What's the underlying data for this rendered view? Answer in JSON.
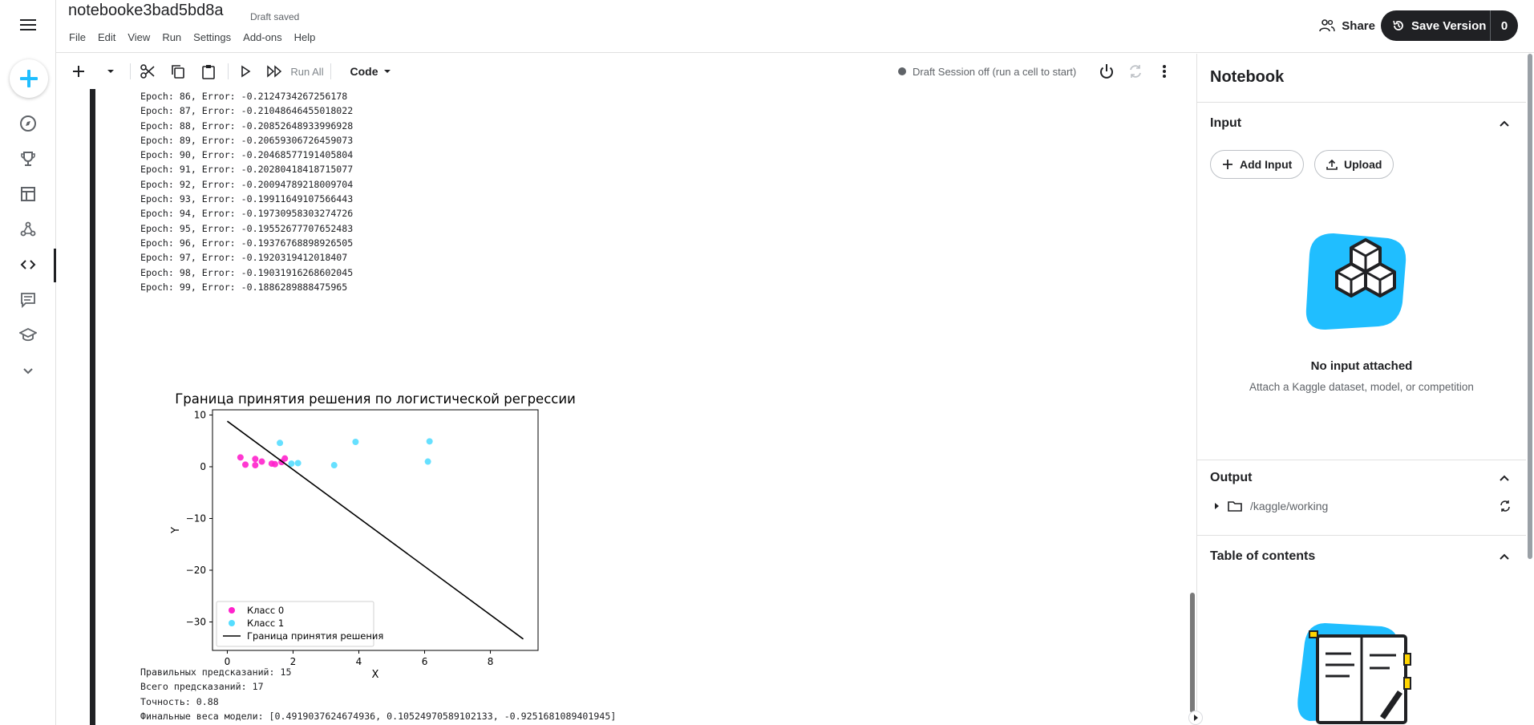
{
  "header": {
    "notebook_title": "notebooke3bad5bd8a",
    "draft_status": "Draft saved",
    "menu": [
      "File",
      "Edit",
      "View",
      "Run",
      "Settings",
      "Add-ons",
      "Help"
    ],
    "share_label": "Share",
    "save_version_label": "Save Version",
    "save_version_count": "0"
  },
  "toolbar": {
    "run_all_label": "Run All",
    "cell_type": "Code",
    "session_status": "Draft Session off (run a cell to start)"
  },
  "cell_output": {
    "log_lines": [
      "Epoch: 86, Error: -0.2124734267256178",
      "Epoch: 87, Error: -0.21048646455018022",
      "Epoch: 88, Error: -0.20852648933996928",
      "Epoch: 89, Error: -0.20659306726459073",
      "Epoch: 90, Error: -0.20468577191405804",
      "Epoch: 91, Error: -0.20280418418715077",
      "Epoch: 92, Error: -0.20094789218009704",
      "Epoch: 93, Error: -0.19911649107566443",
      "Epoch: 94, Error: -0.19730958303274726",
      "Epoch: 95, Error: -0.19552677707652483",
      "Epoch: 96, Error: -0.19376768898926505",
      "Epoch: 97, Error: -0.1920319412018407",
      "Epoch: 98, Error: -0.19031916268602045",
      "Epoch: 99, Error: -0.1886289888475965"
    ],
    "result_lines": [
      "Правильных предсказаний: 15",
      "Всего предсказаний: 17",
      "Точность: 0.88",
      "Финальные веса модели: [0.4919037624674936, 0.10524970589102133, -0.9251681089401945]"
    ]
  },
  "chart_data": {
    "type": "scatter",
    "title": "Граница принятия решения по логистической регрессии",
    "xlabel": "X",
    "ylabel": "Y",
    "xlim": [
      -0.45,
      9.45
    ],
    "ylim": [
      -35.5,
      11
    ],
    "xticks": [
      0,
      2,
      4,
      6,
      8
    ],
    "yticks": [
      10,
      0,
      -10,
      -20,
      -30
    ],
    "grid": false,
    "legend_position": "lower-left",
    "series": [
      {
        "name": "Класс 0",
        "kind": "points",
        "color": "#ff22cc",
        "points": [
          [
            0.4,
            1.8
          ],
          [
            0.55,
            0.4
          ],
          [
            0.85,
            1.5
          ],
          [
            0.85,
            0.3
          ],
          [
            1.05,
            1.0
          ],
          [
            1.35,
            0.6
          ],
          [
            1.45,
            0.5
          ],
          [
            1.65,
            0.9
          ],
          [
            1.75,
            1.6
          ]
        ]
      },
      {
        "name": "Класс 1",
        "kind": "points",
        "color": "#55ddff",
        "points": [
          [
            1.6,
            4.6
          ],
          [
            1.95,
            0.6
          ],
          [
            2.15,
            0.7
          ],
          [
            3.25,
            0.3
          ],
          [
            3.9,
            4.8
          ],
          [
            6.1,
            1.0
          ],
          [
            6.15,
            4.9
          ]
        ]
      },
      {
        "name": "Граница принятия решения",
        "kind": "line",
        "color": "#000000",
        "points": [
          [
            0.0,
            8.8
          ],
          [
            9.0,
            -33.3
          ]
        ]
      }
    ]
  },
  "panel": {
    "title": "Notebook",
    "input_header": "Input",
    "add_input_label": "Add Input",
    "upload_label": "Upload",
    "no_input_title": "No input attached",
    "no_input_desc": "Attach a Kaggle dataset, model, or competition",
    "output_header": "Output",
    "output_path": "/kaggle/working",
    "toc_header": "Table of contents"
  },
  "colors": {
    "accent": "#20beff",
    "dark": "#202124"
  }
}
